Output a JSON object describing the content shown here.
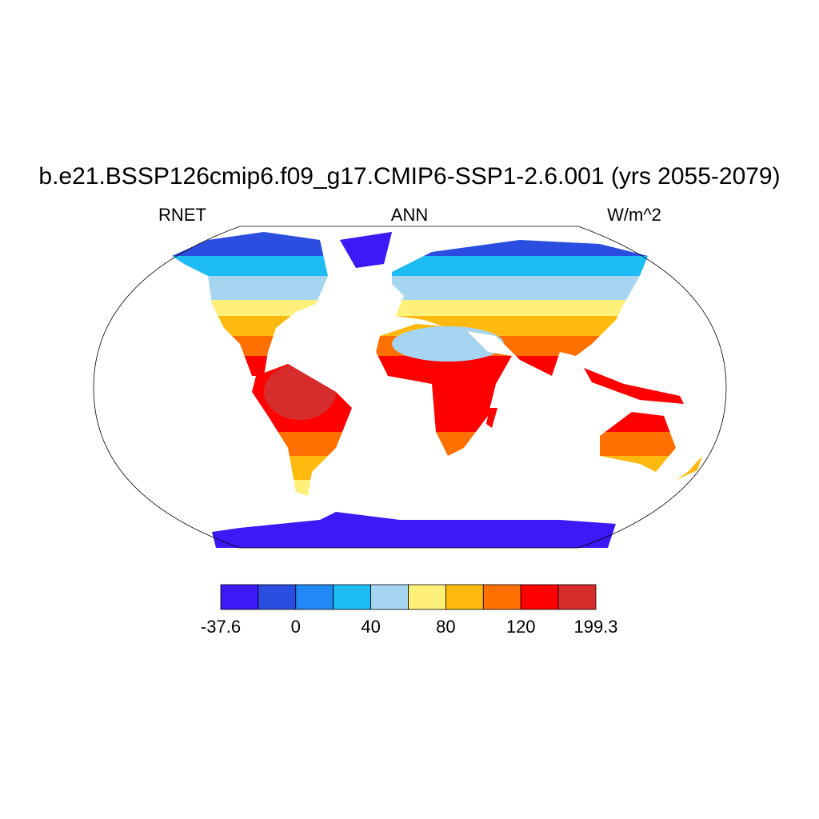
{
  "title": "b.e21.BSSP126cmip6.f09_g17.CMIP6-SSP1-2.6.001 (yrs 2055-2079)",
  "left_string": "RNET",
  "center_string": "ANN",
  "right_string": "W/m^2",
  "colorbar": {
    "colors": [
      "#3c19f5",
      "#2b4ee0",
      "#2288f5",
      "#1ebcf5",
      "#a5d5f0",
      "#fff07a",
      "#ffb90f",
      "#ff7000",
      "#ff0000",
      "#d62c2c"
    ],
    "labels": [
      -37.6,
      0,
      40,
      80,
      120,
      199.3
    ]
  }
}
